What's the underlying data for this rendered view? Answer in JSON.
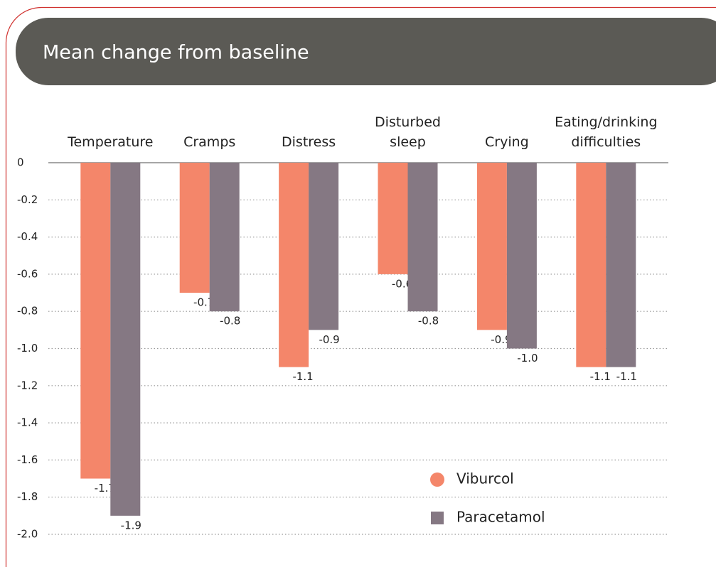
{
  "chart_data": {
    "type": "bar",
    "title": "Mean change from baseline",
    "categories": [
      "Temperature",
      "Cramps",
      "Distress",
      "Disturbed sleep",
      "Crying",
      "Eating/drinking difficulties"
    ],
    "series": [
      {
        "name": "Viburcol",
        "color": "#f4866a",
        "values": [
          -1.7,
          -0.7,
          -1.1,
          -0.6,
          -0.9,
          -1.1
        ],
        "value_labels": [
          "-1.7",
          "-0.7",
          "-1.1",
          "-0.6",
          "-0.9",
          "-1.1"
        ]
      },
      {
        "name": "Paracetamol",
        "color": "#857883",
        "values": [
          -1.9,
          -0.8,
          -0.9,
          -0.8,
          -1.0,
          -1.1
        ],
        "value_labels": [
          "-1.9",
          "-0.8",
          "-0.9",
          "-0.8",
          "-1.0",
          "-1.1"
        ]
      }
    ],
    "ylim": [
      0,
      -2.0
    ],
    "yticks": [
      0,
      -0.2,
      -0.4,
      -0.6,
      -0.8,
      {
        "value": -1.0,
        "label": "-1.0"
      },
      -1.2,
      -1.4,
      -1.6,
      -1.8,
      {
        "value": -2.0,
        "label": "-2.0"
      }
    ],
    "grid": true
  }
}
